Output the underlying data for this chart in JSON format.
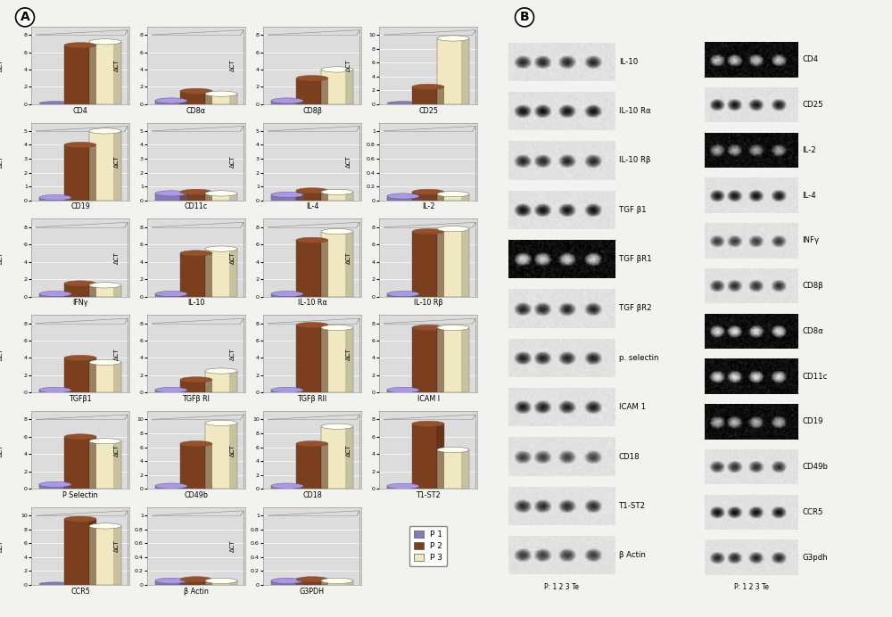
{
  "panel_A_label": "A",
  "panel_B_label": "B",
  "bar_color_p1": "#8878BB",
  "bar_color_p2": "#7B3F1E",
  "bar_color_p3": "#F0E8C0",
  "background_color": "#F5F5F0",
  "chart_bg": "#DCDCDC",
  "chart_wall": "#C8C8C8",
  "charts": [
    {
      "title": "CD4",
      "ylim": [
        0,
        8
      ],
      "yticks": [
        0,
        2,
        4,
        6,
        8
      ],
      "p1": 0.15,
      "p2": 6.8,
      "p3": 7.2
    },
    {
      "title": "CD8α",
      "ylim": [
        0,
        8
      ],
      "yticks": [
        0,
        2,
        4,
        6,
        8
      ],
      "p1": 0.4,
      "p2": 1.5,
      "p3": 1.2
    },
    {
      "title": "CD8β",
      "ylim": [
        0,
        8
      ],
      "yticks": [
        0,
        2,
        4,
        6,
        8
      ],
      "p1": 0.4,
      "p2": 3.0,
      "p3": 4.0
    },
    {
      "title": "CD25",
      "ylim": [
        0,
        10
      ],
      "yticks": [
        0,
        2,
        4,
        6,
        8,
        10
      ],
      "p1": 0.3,
      "p2": 2.5,
      "p3": 9.5
    },
    {
      "title": "CD19",
      "ylim": [
        0,
        5
      ],
      "yticks": [
        0,
        1,
        2,
        3,
        4,
        5
      ],
      "p1": 0.2,
      "p2": 4.0,
      "p3": 5.0
    },
    {
      "title": "CD11c",
      "ylim": [
        0,
        5
      ],
      "yticks": [
        0,
        1,
        2,
        3,
        4,
        5
      ],
      "p1": 0.5,
      "p2": 0.6,
      "p3": 0.5
    },
    {
      "title": "IL-4",
      "ylim": [
        0,
        5
      ],
      "yticks": [
        0,
        1,
        2,
        3,
        4,
        5
      ],
      "p1": 0.4,
      "p2": 0.7,
      "p3": 0.6
    },
    {
      "title": "IL-2",
      "ylim": [
        0,
        1
      ],
      "yticks": [
        0,
        0.2,
        0.4,
        0.6,
        0.8,
        1
      ],
      "p1": 0.06,
      "p2": 0.12,
      "p3": 0.09
    },
    {
      "title": "IFNγ",
      "ylim": [
        0,
        8
      ],
      "yticks": [
        0,
        2,
        4,
        6,
        8
      ],
      "p1": 0.3,
      "p2": 1.5,
      "p3": 1.3
    },
    {
      "title": "IL-10",
      "ylim": [
        0,
        8
      ],
      "yticks": [
        0,
        2,
        4,
        6,
        8
      ],
      "p1": 0.3,
      "p2": 5.0,
      "p3": 5.5
    },
    {
      "title": "IL-10 Rα",
      "ylim": [
        0,
        8
      ],
      "yticks": [
        0,
        2,
        4,
        6,
        8
      ],
      "p1": 0.3,
      "p2": 6.5,
      "p3": 7.5
    },
    {
      "title": "IL-10 Rβ",
      "ylim": [
        0,
        8
      ],
      "yticks": [
        0,
        2,
        4,
        6,
        8
      ],
      "p1": 0.3,
      "p2": 7.5,
      "p3": 7.8
    },
    {
      "title": "TGFβ1",
      "ylim": [
        0,
        8
      ],
      "yticks": [
        0,
        2,
        4,
        6,
        8
      ],
      "p1": 0.3,
      "p2": 4.0,
      "p3": 3.5
    },
    {
      "title": "TGFβ RI",
      "ylim": [
        0,
        8
      ],
      "yticks": [
        0,
        2,
        4,
        6,
        8
      ],
      "p1": 0.3,
      "p2": 1.5,
      "p3": 2.5
    },
    {
      "title": "TGFβ RII",
      "ylim": [
        0,
        8
      ],
      "yticks": [
        0,
        2,
        4,
        6,
        8
      ],
      "p1": 0.3,
      "p2": 7.8,
      "p3": 7.5
    },
    {
      "title": "ICAM I",
      "ylim": [
        0,
        8
      ],
      "yticks": [
        0,
        2,
        4,
        6,
        8
      ],
      "p1": 0.3,
      "p2": 7.5,
      "p3": 7.5
    },
    {
      "title": "P Selectin",
      "ylim": [
        0,
        8
      ],
      "yticks": [
        0,
        2,
        4,
        6,
        8
      ],
      "p1": 0.5,
      "p2": 6.0,
      "p3": 5.5
    },
    {
      "title": "CD49b",
      "ylim": [
        0,
        10
      ],
      "yticks": [
        0,
        2,
        4,
        6,
        8,
        10
      ],
      "p1": 0.4,
      "p2": 6.5,
      "p3": 9.5
    },
    {
      "title": "CD18",
      "ylim": [
        0,
        10
      ],
      "yticks": [
        0,
        2,
        4,
        6,
        8,
        10
      ],
      "p1": 0.4,
      "p2": 6.5,
      "p3": 9.0
    },
    {
      "title": "T1-ST2",
      "ylim": [
        0,
        8
      ],
      "yticks": [
        0,
        2,
        4,
        6,
        8
      ],
      "p1": 0.3,
      "p2": 7.5,
      "p3": 4.5
    },
    {
      "title": "CCR5",
      "ylim": [
        0,
        10
      ],
      "yticks": [
        0,
        2,
        4,
        6,
        8,
        10
      ],
      "p1": 0.3,
      "p2": 9.5,
      "p3": 8.5
    },
    {
      "title": "β Actin",
      "ylim": [
        0,
        1
      ],
      "yticks": [
        0,
        0.2,
        0.4,
        0.6,
        0.8,
        1
      ],
      "p1": 0.06,
      "p2": 0.08,
      "p3": 0.06
    },
    {
      "title": "G3PDH",
      "ylim": [
        0,
        1
      ],
      "yticks": [
        0,
        0.2,
        0.4,
        0.6,
        0.8,
        1
      ],
      "p1": 0.06,
      "p2": 0.08,
      "p3": 0.06
    }
  ],
  "gel_left_labels": [
    "IL-10",
    "IL-10 Rα",
    "IL-10 Rβ",
    "TGF β1",
    "TGF βR1",
    "TGF βR2",
    "p. selectin",
    "ICAM 1",
    "CD18",
    "T1-ST2",
    "β Actin"
  ],
  "gel_right_labels": [
    "CD4",
    "CD25",
    "IL-2",
    "IL-4",
    "INFγ",
    "CD8β",
    "CD8α",
    "CD11c",
    "CD19",
    "CD49b",
    "CCR5",
    "G3pdh"
  ],
  "gel_left_dark": [
    false,
    false,
    false,
    false,
    true,
    false,
    false,
    false,
    false,
    false,
    false
  ],
  "gel_right_dark": [
    true,
    false,
    true,
    false,
    false,
    false,
    true,
    true,
    true,
    false,
    false,
    false
  ],
  "legend_labels": [
    "P 1",
    "P 2",
    "P 3"
  ]
}
